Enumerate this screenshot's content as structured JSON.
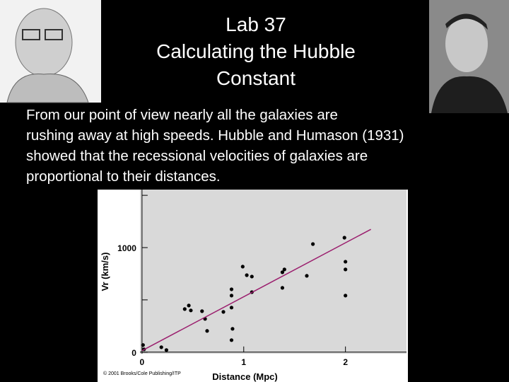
{
  "slide": {
    "title_lines": [
      "Lab 37",
      "Calculating the Hubble",
      "Constant"
    ],
    "body_lines": [
      "From our point of view nearly all the galaxies are",
      "rushing away at high speeds. Hubble and Humason (1931)",
      "showed that the recessional velocities of galaxies are",
      "proportional to their distances."
    ]
  },
  "chart_data": {
    "type": "scatter",
    "x_label": "Distance (Mpc)",
    "y_label": "Vr (km/s)",
    "credit": "© 2001 Brooks/Cole Publishing/ITP",
    "xlim": [
      -0.02,
      2.6
    ],
    "ylim": [
      -15,
      1555
    ],
    "xticks": [
      0,
      1,
      2
    ],
    "yticks": [
      0,
      1000
    ],
    "minor_yticks": [
      500,
      1500
    ],
    "series": [
      {
        "color": "#000000",
        "x": [
          0.01,
          0.02,
          0.19,
          0.24,
          0.42,
          0.46,
          0.48,
          0.59,
          0.62,
          0.64,
          0.8,
          0.88,
          0.88,
          0.88,
          0.89,
          0.88,
          0.99,
          1.03,
          1.08,
          1.08,
          1.38,
          1.4,
          1.38,
          1.62,
          1.68,
          1.99,
          2.0,
          2.0,
          2.0
        ],
        "values": [
          68,
          27,
          47,
          20,
          412,
          446,
          399,
          392,
          318,
          203,
          385,
          601,
          541,
          426,
          223,
          115,
          818,
          736,
          723,
          574,
          764,
          791,
          615,
          730,
          1034,
          1095,
          865,
          791,
          541
        ]
      },
      {
        "type": "line",
        "color": "#9b1f6e",
        "x": [
          0,
          2.25
        ],
        "values": [
          14,
          1175
        ]
      }
    ]
  }
}
